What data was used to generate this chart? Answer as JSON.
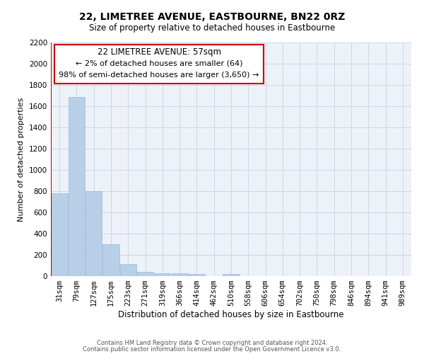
{
  "title": "22, LIMETREE AVENUE, EASTBOURNE, BN22 0RZ",
  "subtitle": "Size of property relative to detached houses in Eastbourne",
  "xlabel": "Distribution of detached houses by size in Eastbourne",
  "ylabel": "Number of detached properties",
  "bar_labels": [
    "31sqm",
    "79sqm",
    "127sqm",
    "175sqm",
    "223sqm",
    "271sqm",
    "319sqm",
    "366sqm",
    "414sqm",
    "462sqm",
    "510sqm",
    "558sqm",
    "606sqm",
    "654sqm",
    "702sqm",
    "750sqm",
    "798sqm",
    "846sqm",
    "894sqm",
    "941sqm",
    "989sqm"
  ],
  "bar_values": [
    780,
    1690,
    800,
    300,
    115,
    40,
    30,
    25,
    20,
    0,
    20,
    0,
    0,
    0,
    0,
    0,
    0,
    0,
    0,
    0,
    0
  ],
  "bar_color": "#b8cfe8",
  "bar_edgecolor": "#9ab8d8",
  "ylim": [
    0,
    2200
  ],
  "yticks": [
    0,
    200,
    400,
    600,
    800,
    1000,
    1200,
    1400,
    1600,
    1800,
    2000,
    2200
  ],
  "annotation_title": "22 LIMETREE AVENUE: 57sqm",
  "annotation_line1": "← 2% of detached houses are smaller (64)",
  "annotation_line2": "98% of semi-detached houses are larger (3,650) →",
  "annotation_box_facecolor": "#ffffff",
  "annotation_box_edgecolor": "#cc0000",
  "property_line_color": "#cc0000",
  "property_line_x": -0.5,
  "grid_color": "#c8d8e8",
  "background_color": "#edf2f8",
  "footer_line1": "Contains HM Land Registry data © Crown copyright and database right 2024.",
  "footer_line2": "Contains public sector information licensed under the Open Government Licence v3.0.",
  "title_fontsize": 10,
  "subtitle_fontsize": 8.5,
  "ylabel_fontsize": 8,
  "xlabel_fontsize": 8.5,
  "tick_fontsize": 7.5,
  "ann_title_fontsize": 8.5,
  "ann_text_fontsize": 8,
  "footer_fontsize": 6
}
